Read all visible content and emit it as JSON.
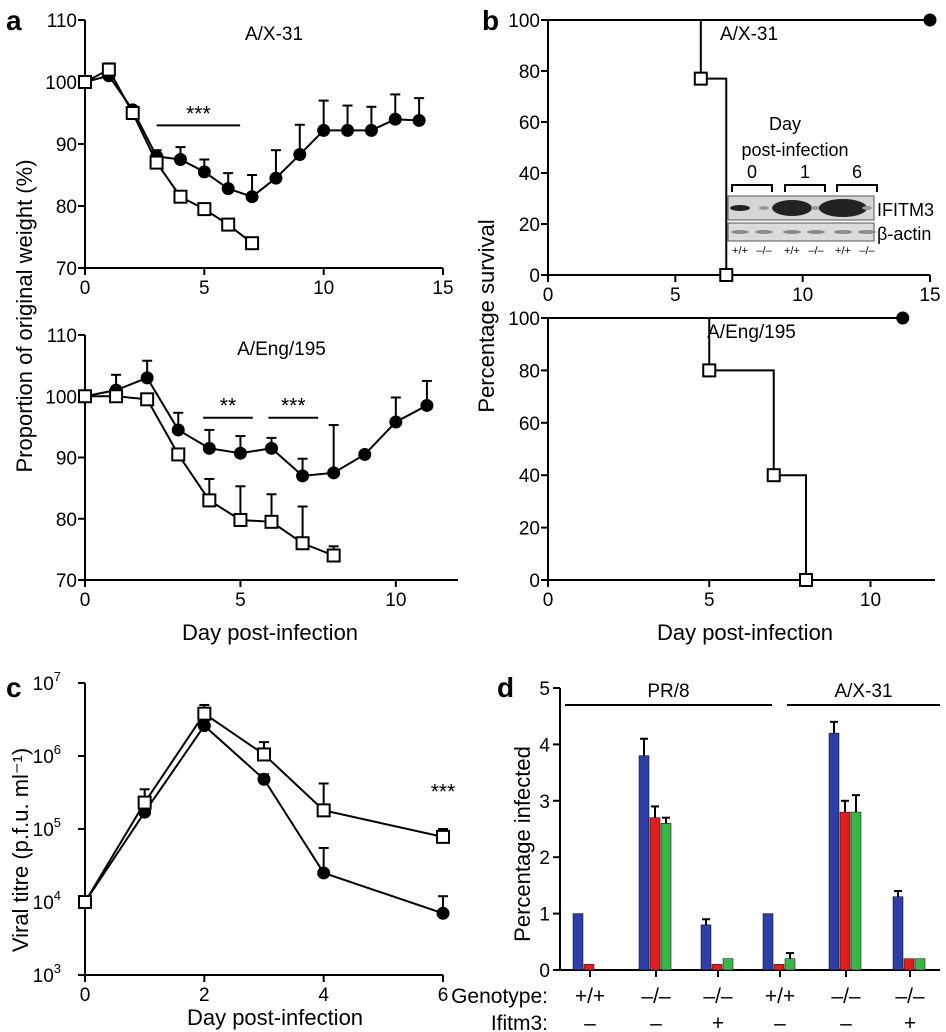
{
  "panel_labels": {
    "a": "a",
    "b": "b",
    "c": "c",
    "d": "d"
  },
  "shared": {
    "ylabel_a": "Proportion of original weight (%)",
    "ylabel_b": "Percentage survival",
    "ylabel_c": "Viral titre (p.f.u. ml⁻¹)",
    "ylabel_d": "Percentage infected",
    "xlabel_ab": "Day post-infection",
    "xlabel_c": "Day post-infection"
  },
  "chart_data": [
    {
      "id": "a-top",
      "type": "line",
      "title": "A/X-31",
      "xlim": [
        0,
        15
      ],
      "ylim": [
        70,
        110
      ],
      "xticks": [
        0,
        5,
        10,
        15
      ],
      "yticks": [
        70,
        80,
        90,
        100,
        110
      ],
      "series": [
        {
          "marker": "filled-circle",
          "x": [
            0,
            1,
            2,
            3,
            4,
            5,
            6,
            7,
            8,
            9,
            10,
            11,
            12,
            13,
            14
          ],
          "y": [
            100,
            101,
            95.5,
            88,
            87.5,
            85.5,
            82.8,
            81.5,
            84.5,
            88.3,
            92.2,
            92.2,
            92.2,
            94,
            93.8
          ],
          "err": [
            0,
            0,
            0,
            1,
            2,
            2,
            2.5,
            3.5,
            4.5,
            4.8,
            4.8,
            4,
            3.8,
            4,
            3.6
          ]
        },
        {
          "marker": "open-square",
          "x": [
            0,
            1,
            2,
            3,
            4,
            5,
            6,
            7
          ],
          "y": [
            100,
            102,
            95,
            87,
            81.5,
            79.5,
            77,
            74
          ],
          "err": [
            0,
            1,
            0.8,
            0.8,
            0,
            0,
            0,
            0
          ]
        }
      ],
      "annotations": [
        {
          "text": "***",
          "x1": 3,
          "x2": 6.5,
          "y": 93
        }
      ]
    },
    {
      "id": "a-bottom",
      "type": "line",
      "title": "A/Eng/195",
      "xlim": [
        0,
        12
      ],
      "ylim": [
        70,
        110
      ],
      "xticks": [
        0,
        5,
        10
      ],
      "yticks": [
        70,
        80,
        90,
        100,
        110
      ],
      "series": [
        {
          "marker": "filled-circle",
          "x": [
            0,
            1,
            2,
            3,
            4,
            5,
            6,
            7,
            8,
            9,
            10,
            11
          ],
          "y": [
            100,
            101,
            103,
            94.5,
            91.5,
            90.7,
            91.5,
            87,
            87.5,
            90.5,
            95.8,
            98.5
          ],
          "err": [
            0,
            2.5,
            2.8,
            2.8,
            3,
            2.8,
            1.7,
            2.8,
            7.8,
            0,
            4,
            4
          ]
        },
        {
          "marker": "open-square",
          "x": [
            0,
            1,
            2,
            3,
            4,
            5,
            6,
            7,
            8
          ],
          "y": [
            100,
            100,
            99.5,
            90.5,
            83,
            79.8,
            79.5,
            76,
            74
          ],
          "err": [
            0,
            0,
            0,
            0,
            3.5,
            5.5,
            4.5,
            6,
            1.5
          ]
        }
      ],
      "annotations": [
        {
          "text": "**",
          "x1": 3.8,
          "x2": 5.4,
          "y": 96.5
        },
        {
          "text": "***",
          "x1": 5.9,
          "x2": 7.5,
          "y": 96.5
        }
      ]
    },
    {
      "id": "b-top",
      "type": "line",
      "title": "A/X-31",
      "xlim": [
        0,
        15
      ],
      "ylim": [
        0,
        100
      ],
      "xticks": [
        0,
        5,
        10,
        15
      ],
      "yticks": [
        0,
        20,
        40,
        60,
        80,
        100
      ],
      "series": [
        {
          "marker": "filled-circle",
          "step": true,
          "x": [
            0,
            15
          ],
          "y": [
            100,
            100
          ]
        },
        {
          "marker": "open-square",
          "step": true,
          "x": [
            0,
            6,
            7
          ],
          "y": [
            100,
            77,
            0
          ]
        }
      ],
      "inset": {
        "title_line1": "Day",
        "title_line2": "post-infection",
        "days": [
          "0",
          "1",
          "6"
        ],
        "bands": [
          "IFITM3",
          "β-actin"
        ],
        "genotypes": [
          "+/+",
          "–/–",
          "+/+",
          "–/–",
          "+/+",
          "–/–"
        ]
      }
    },
    {
      "id": "b-bottom",
      "type": "line",
      "title": "A/Eng/195",
      "xlim": [
        0,
        12
      ],
      "ylim": [
        0,
        100
      ],
      "xticks": [
        0,
        5,
        10
      ],
      "yticks": [
        0,
        20,
        40,
        60,
        80,
        100
      ],
      "series": [
        {
          "marker": "filled-circle",
          "step": true,
          "x": [
            0,
            11
          ],
          "y": [
            100,
            100
          ]
        },
        {
          "marker": "open-square",
          "step": true,
          "x": [
            0,
            5,
            7,
            8
          ],
          "y": [
            100,
            80,
            40,
            0
          ]
        }
      ]
    },
    {
      "id": "c",
      "type": "line",
      "scale_y": "log",
      "xlim": [
        0,
        6
      ],
      "ylim": [
        1000,
        10000000
      ],
      "xticks": [
        0,
        2,
        4,
        6
      ],
      "yticks": [
        1000,
        10000,
        100000,
        1000000,
        10000000
      ],
      "ytick_labels": [
        "10",
        "10",
        "10",
        "10",
        "10"
      ],
      "ytick_exps": [
        "3",
        "4",
        "5",
        "6",
        "7"
      ],
      "series": [
        {
          "marker": "filled-circle",
          "x": [
            0,
            1,
            2,
            3,
            4,
            6
          ],
          "y": [
            10000,
            170000,
            2600000,
            480000,
            25000,
            7000
          ],
          "err_up": [
            0,
            0,
            3000000,
            560000,
            55000,
            12000
          ]
        },
        {
          "marker": "open-square",
          "x": [
            0,
            1,
            2,
            3,
            4,
            6
          ],
          "y": [
            10000,
            230000,
            3800000,
            1050000,
            180000,
            78000
          ],
          "err_up": [
            0,
            350000,
            5000000,
            1550000,
            420000,
            100000
          ]
        }
      ],
      "annotations": [
        {
          "text": "***",
          "x": 6,
          "y": 260000
        }
      ]
    },
    {
      "id": "d",
      "type": "bar",
      "ylim": [
        0,
        5
      ],
      "yticks": [
        0,
        1,
        2,
        3,
        4,
        5
      ],
      "groups_top": [
        {
          "label": "PR/8"
        },
        {
          "label": "A/X-31"
        }
      ],
      "row_labels": {
        "genotype": "Genotype:",
        "ifitm3": "Ifitm3:"
      },
      "genotype": [
        "+/+",
        "–/–",
        "–/–",
        "+/+",
        "–/–",
        "–/–"
      ],
      "ifitm3": [
        "–",
        "–",
        "+",
        "–",
        "–",
        "+"
      ],
      "colors": [
        "#2d3fa6",
        "#e11f23",
        "#39b54a"
      ],
      "values": [
        [
          1.0,
          0.1,
          null
        ],
        [
          3.8,
          2.7,
          2.6
        ],
        [
          0.8,
          0.1,
          0.2
        ],
        [
          1.0,
          0.1,
          0.2
        ],
        [
          4.2,
          2.8,
          2.8
        ],
        [
          1.3,
          0.2,
          0.2
        ]
      ],
      "errors": [
        [
          0,
          0,
          null
        ],
        [
          0.3,
          0.2,
          0.1
        ],
        [
          0.1,
          0,
          0
        ],
        [
          0,
          0,
          0.1
        ],
        [
          0.2,
          0.2,
          0.3
        ],
        [
          0.1,
          0,
          0
        ]
      ]
    }
  ]
}
